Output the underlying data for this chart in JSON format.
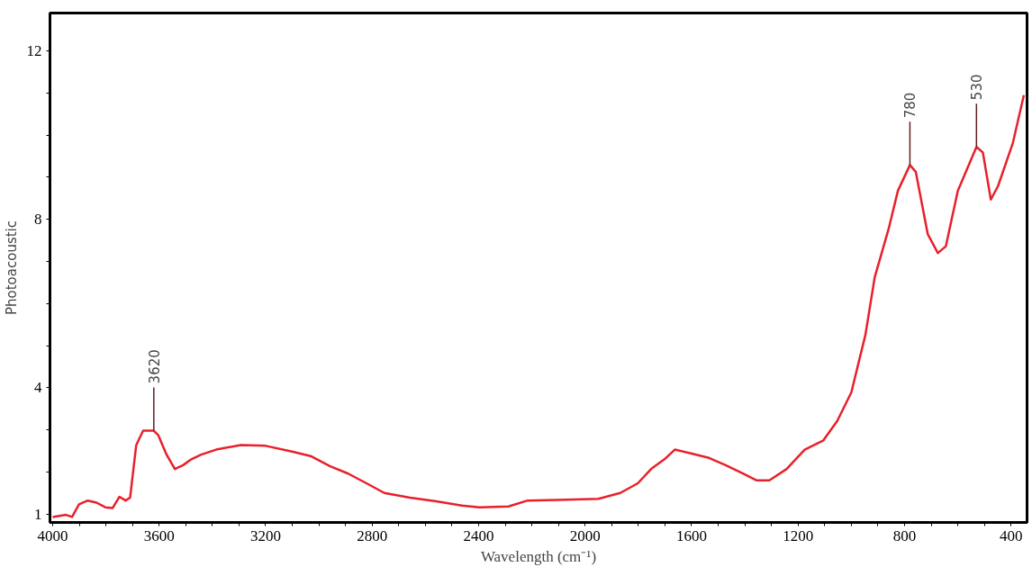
{
  "chart_data": {
    "type": "line",
    "xlabel": "Wavelength (cm⁻¹)",
    "ylabel": "Photoacoustic",
    "xlim": [
      4010,
      340
    ],
    "ylim": [
      0.8,
      12.9
    ],
    "xticks": [
      4000,
      {
        "value": 3900,
        "label": null
      },
      {
        "value": 3800,
        "label": null
      },
      {
        "value": 3700,
        "label": null
      },
      3600,
      {
        "value": 3500,
        "label": null
      },
      {
        "value": 3400,
        "label": null
      },
      {
        "value": 3300,
        "label": null
      },
      3200,
      {
        "value": 3100,
        "label": null
      },
      {
        "value": 3000,
        "label": null
      },
      {
        "value": 2900,
        "label": null
      },
      2800,
      {
        "value": 2700,
        "label": null
      },
      {
        "value": 2600,
        "label": null
      },
      {
        "value": 2500,
        "label": null
      },
      2400,
      {
        "value": 2300,
        "label": null
      },
      {
        "value": 2200,
        "label": null
      },
      {
        "value": 2100,
        "label": null
      },
      2000,
      {
        "value": 1900,
        "label": null
      },
      {
        "value": 1800,
        "label": null
      },
      {
        "value": 1700,
        "label": null
      },
      1600,
      {
        "value": 1500,
        "label": null
      },
      {
        "value": 1400,
        "label": null
      },
      {
        "value": 1300,
        "label": null
      },
      1200,
      {
        "value": 1100,
        "label": null
      },
      {
        "value": 1000,
        "label": null
      },
      {
        "value": 900,
        "label": null
      },
      800,
      {
        "value": 700,
        "label": null
      },
      {
        "value": 600,
        "label": null
      },
      {
        "value": 500,
        "label": null
      },
      400
    ],
    "yticks": [
      1,
      {
        "value": 2,
        "label": null
      },
      {
        "value": 3,
        "label": null
      },
      4,
      {
        "value": 5,
        "label": null
      },
      {
        "value": 6,
        "label": null
      },
      {
        "value": 7,
        "label": null
      },
      8,
      {
        "value": 9,
        "label": null
      },
      {
        "value": 10,
        "label": null
      },
      {
        "value": 11,
        "label": null
      },
      12
    ],
    "grid": false,
    "marker": "none",
    "line_style": "solid",
    "x": [
      4000,
      3950,
      3927,
      3901,
      3868,
      3835,
      3802,
      3775,
      3749,
      3726,
      3709,
      3686,
      3660,
      3636,
      3620,
      3603,
      3572,
      3541,
      3510,
      3479,
      3442,
      3386,
      3293,
      3200,
      3097,
      3028,
      2959,
      2890,
      2821,
      2754,
      2657,
      2559,
      2462,
      2396,
      2288,
      2216,
      2072,
      1950,
      1868,
      1802,
      1752,
      1702,
      1663,
      1603,
      1538,
      1472,
      1407,
      1357,
      1308,
      1243,
      1175,
      1105,
      1053,
      1000,
      947,
      912,
      860,
      825,
      780,
      758,
      713,
      675,
      645,
      600,
      530,
      506,
      476,
      449,
      393,
      352
    ],
    "series": [
      {
        "color": "#e8202a",
        "values": [
          0.93,
          0.98,
          0.93,
          1.23,
          1.32,
          1.27,
          1.16,
          1.14,
          1.41,
          1.32,
          1.39,
          2.64,
          2.98,
          2.98,
          2.98,
          2.87,
          2.41,
          2.07,
          2.16,
          2.3,
          2.41,
          2.53,
          2.64,
          2.62,
          2.48,
          2.37,
          2.14,
          1.96,
          1.73,
          1.5,
          1.39,
          1.3,
          1.2,
          1.16,
          1.18,
          1.32,
          1.34,
          1.36,
          1.5,
          1.73,
          2.07,
          2.3,
          2.53,
          2.44,
          2.34,
          2.16,
          1.96,
          1.8,
          1.8,
          2.07,
          2.53,
          2.75,
          3.21,
          3.89,
          5.26,
          6.63,
          7.77,
          8.68,
          9.29,
          9.13,
          7.65,
          7.2,
          7.36,
          8.68,
          9.72,
          9.59,
          8.47,
          8.79,
          9.82,
          10.95
        ]
      }
    ],
    "annotations": [
      {
        "text": "3620",
        "x": 3620,
        "y": 2.98
      },
      {
        "text": "780",
        "x": 780,
        "y": 9.29
      },
      {
        "text": "530",
        "x": 530,
        "y": 9.72
      }
    ]
  }
}
